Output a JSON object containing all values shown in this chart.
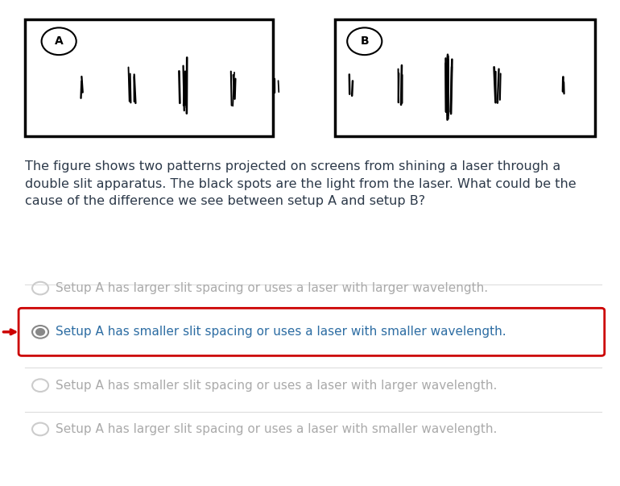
{
  "bg_color": "#ffffff",
  "question_text": "The figure shows two patterns projected on screens from shining a laser through a\ndouble slit apparatus. The black spots are the light from the laser. What could be the\ncause of the difference we see between setup A and setup B?",
  "question_fontsize": 11.5,
  "question_color": "#2d3a4a",
  "options": [
    {
      "text": "Setup A has larger slit spacing or uses a laser with larger wavelength.",
      "selected": false,
      "grayed": true
    },
    {
      "text": "Setup A has smaller slit spacing or uses a laser with smaller wavelength.",
      "selected": true,
      "grayed": false
    },
    {
      "text": "Setup A has smaller slit spacing or uses a laser with larger wavelength.",
      "selected": false,
      "grayed": true
    },
    {
      "text": "Setup A has larger slit spacing or uses a laser with smaller wavelength.",
      "selected": false,
      "grayed": true
    }
  ],
  "option_fontsize": 11,
  "selected_text_color": "#2d6da3",
  "grayed_text_color": "#aaaaaa",
  "selected_box_color": "#cc0000",
  "selected_arrow_color": "#cc0000",
  "radio_color_selected": "#888888",
  "radio_color_unselected": "#cccccc",
  "setupA_label": "A",
  "setupB_label": "B"
}
